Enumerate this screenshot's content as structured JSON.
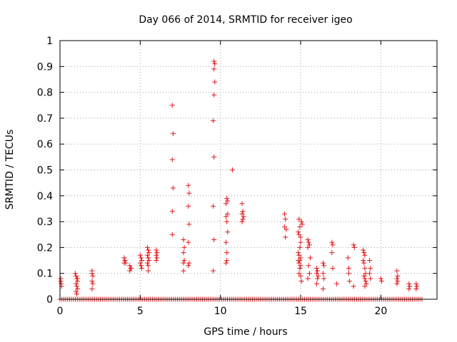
{
  "chart_data": {
    "type": "scatter",
    "title": "Day 066 of 2014, SRMTID for receiver igeo",
    "xlabel": "GPS time / hours",
    "ylabel": "SRMTID / TECUs",
    "xlim": [
      0,
      23.5
    ],
    "ylim": [
      0,
      1
    ],
    "xticks": [
      0,
      5,
      10,
      15,
      20
    ],
    "xtick_labels": [
      "0",
      "5",
      "10",
      "15",
      "20"
    ],
    "yticks": [
      0,
      0.1,
      0.2,
      0.3,
      0.4,
      0.5,
      0.6,
      0.7,
      0.8,
      0.9,
      1
    ],
    "ytick_labels": [
      "0",
      "0.1",
      "0.2",
      "0.3",
      "0.4",
      "0.5",
      "0.6",
      "0.7",
      "0.8",
      "0.9",
      "1"
    ],
    "grid": true,
    "marker": "+",
    "color": "#e41a1c",
    "baseline_x_range": [
      0,
      22.6
    ],
    "baseline_step": 0.12,
    "series": [
      {
        "name": "SRMTID",
        "points": [
          [
            0.05,
            0.08
          ],
          [
            0.05,
            0.07
          ],
          [
            0.08,
            0.06
          ],
          [
            0.1,
            0.05
          ],
          [
            0.95,
            0.1
          ],
          [
            1.0,
            0.09
          ],
          [
            1.05,
            0.08
          ],
          [
            1.1,
            0.07
          ],
          [
            1.0,
            0.06
          ],
          [
            1.05,
            0.05
          ],
          [
            1.1,
            0.04
          ],
          [
            1.0,
            0.03
          ],
          [
            1.05,
            0.02
          ],
          [
            1.1,
            0.08
          ],
          [
            2.0,
            0.11
          ],
          [
            2.0,
            0.1
          ],
          [
            2.05,
            0.09
          ],
          [
            2.0,
            0.07
          ],
          [
            2.05,
            0.06
          ],
          [
            2.0,
            0.04
          ],
          [
            4.0,
            0.16
          ],
          [
            4.05,
            0.15
          ],
          [
            4.0,
            0.14
          ],
          [
            4.1,
            0.14
          ],
          [
            4.35,
            0.13
          ],
          [
            4.4,
            0.12
          ],
          [
            4.45,
            0.12
          ],
          [
            4.35,
            0.11
          ],
          [
            5.0,
            0.17
          ],
          [
            5.05,
            0.16
          ],
          [
            5.1,
            0.15
          ],
          [
            5.0,
            0.14
          ],
          [
            5.05,
            0.13
          ],
          [
            5.1,
            0.12
          ],
          [
            5.45,
            0.2
          ],
          [
            5.5,
            0.19
          ],
          [
            5.55,
            0.18
          ],
          [
            5.45,
            0.17
          ],
          [
            5.5,
            0.16
          ],
          [
            5.55,
            0.15
          ],
          [
            5.45,
            0.14
          ],
          [
            5.5,
            0.13
          ],
          [
            5.5,
            0.11
          ],
          [
            6.0,
            0.19
          ],
          [
            6.05,
            0.18
          ],
          [
            6.0,
            0.17
          ],
          [
            6.05,
            0.16
          ],
          [
            6.0,
            0.15
          ],
          [
            7.0,
            0.75
          ],
          [
            7.05,
            0.64
          ],
          [
            7.0,
            0.54
          ],
          [
            7.05,
            0.43
          ],
          [
            7.0,
            0.34
          ],
          [
            7.0,
            0.25
          ],
          [
            7.7,
            0.23
          ],
          [
            7.75,
            0.2
          ],
          [
            7.7,
            0.18
          ],
          [
            7.75,
            0.15
          ],
          [
            7.7,
            0.14
          ],
          [
            7.7,
            0.11
          ],
          [
            8.0,
            0.44
          ],
          [
            8.05,
            0.41
          ],
          [
            8.0,
            0.36
          ],
          [
            8.05,
            0.29
          ],
          [
            8.0,
            0.22
          ],
          [
            8.05,
            0.14
          ],
          [
            8.0,
            0.13
          ],
          [
            9.6,
            0.92
          ],
          [
            9.65,
            0.91
          ],
          [
            9.6,
            0.89
          ],
          [
            9.65,
            0.84
          ],
          [
            9.6,
            0.79
          ],
          [
            9.55,
            0.69
          ],
          [
            9.6,
            0.55
          ],
          [
            9.55,
            0.36
          ],
          [
            9.6,
            0.23
          ],
          [
            9.55,
            0.11
          ],
          [
            10.4,
            0.39
          ],
          [
            10.45,
            0.38
          ],
          [
            10.35,
            0.37
          ],
          [
            10.45,
            0.33
          ],
          [
            10.35,
            0.32
          ],
          [
            10.4,
            0.3
          ],
          [
            10.45,
            0.26
          ],
          [
            10.35,
            0.22
          ],
          [
            10.4,
            0.18
          ],
          [
            10.4,
            0.15
          ],
          [
            10.35,
            0.14
          ],
          [
            10.75,
            0.5
          ],
          [
            11.35,
            0.37
          ],
          [
            11.4,
            0.34
          ],
          [
            11.35,
            0.33
          ],
          [
            11.45,
            0.32
          ],
          [
            11.4,
            0.31
          ],
          [
            11.35,
            0.3
          ],
          [
            14.0,
            0.33
          ],
          [
            14.05,
            0.31
          ],
          [
            14.0,
            0.28
          ],
          [
            14.1,
            0.27
          ],
          [
            14.05,
            0.24
          ],
          [
            14.9,
            0.31
          ],
          [
            14.95,
            0.28
          ],
          [
            14.85,
            0.26
          ],
          [
            14.9,
            0.25
          ],
          [
            15.0,
            0.22
          ],
          [
            14.95,
            0.2
          ],
          [
            14.85,
            0.18
          ],
          [
            14.9,
            0.17
          ],
          [
            15.0,
            0.16
          ],
          [
            14.95,
            0.15
          ],
          [
            14.85,
            0.15
          ],
          [
            14.9,
            0.14
          ],
          [
            15.0,
            0.13
          ],
          [
            14.95,
            0.12
          ],
          [
            14.9,
            0.1
          ],
          [
            15.0,
            0.09
          ],
          [
            15.05,
            0.07
          ],
          [
            15.05,
            0.3
          ],
          [
            15.1,
            0.29
          ],
          [
            15.0,
            0.24
          ],
          [
            15.45,
            0.23
          ],
          [
            15.5,
            0.22
          ],
          [
            15.55,
            0.21
          ],
          [
            15.45,
            0.2
          ],
          [
            15.6,
            0.16
          ],
          [
            15.5,
            0.13
          ],
          [
            15.55,
            0.1
          ],
          [
            15.45,
            0.08
          ],
          [
            16.0,
            0.12
          ],
          [
            16.05,
            0.11
          ],
          [
            16.0,
            0.1
          ],
          [
            16.1,
            0.09
          ],
          [
            16.05,
            0.08
          ],
          [
            16.0,
            0.06
          ],
          [
            16.4,
            0.14
          ],
          [
            16.45,
            0.13
          ],
          [
            16.4,
            0.1
          ],
          [
            16.45,
            0.08
          ],
          [
            16.4,
            0.04
          ],
          [
            16.95,
            0.22
          ],
          [
            17.0,
            0.21
          ],
          [
            16.95,
            0.18
          ],
          [
            17.0,
            0.12
          ],
          [
            17.25,
            0.06
          ],
          [
            17.95,
            0.16
          ],
          [
            18.0,
            0.12
          ],
          [
            18.0,
            0.1
          ],
          [
            18.05,
            0.07
          ],
          [
            18.3,
            0.21
          ],
          [
            18.35,
            0.2
          ],
          [
            18.3,
            0.05
          ],
          [
            18.9,
            0.19
          ],
          [
            18.95,
            0.18
          ],
          [
            19.0,
            0.17
          ],
          [
            18.9,
            0.15
          ],
          [
            18.95,
            0.14
          ],
          [
            19.0,
            0.12
          ],
          [
            19.05,
            0.1
          ],
          [
            18.95,
            0.09
          ],
          [
            19.0,
            0.08
          ],
          [
            19.05,
            0.07
          ],
          [
            19.1,
            0.06
          ],
          [
            19.0,
            0.05
          ],
          [
            19.3,
            0.15
          ],
          [
            19.35,
            0.12
          ],
          [
            19.3,
            0.1
          ],
          [
            19.35,
            0.08
          ],
          [
            20.0,
            0.08
          ],
          [
            20.05,
            0.07
          ],
          [
            21.0,
            0.11
          ],
          [
            21.05,
            0.09
          ],
          [
            21.0,
            0.08
          ],
          [
            21.05,
            0.07
          ],
          [
            21.0,
            0.06
          ],
          [
            21.75,
            0.06
          ],
          [
            21.8,
            0.05
          ],
          [
            21.75,
            0.04
          ],
          [
            22.2,
            0.06
          ],
          [
            22.25,
            0.05
          ],
          [
            22.2,
            0.04
          ]
        ]
      }
    ]
  }
}
